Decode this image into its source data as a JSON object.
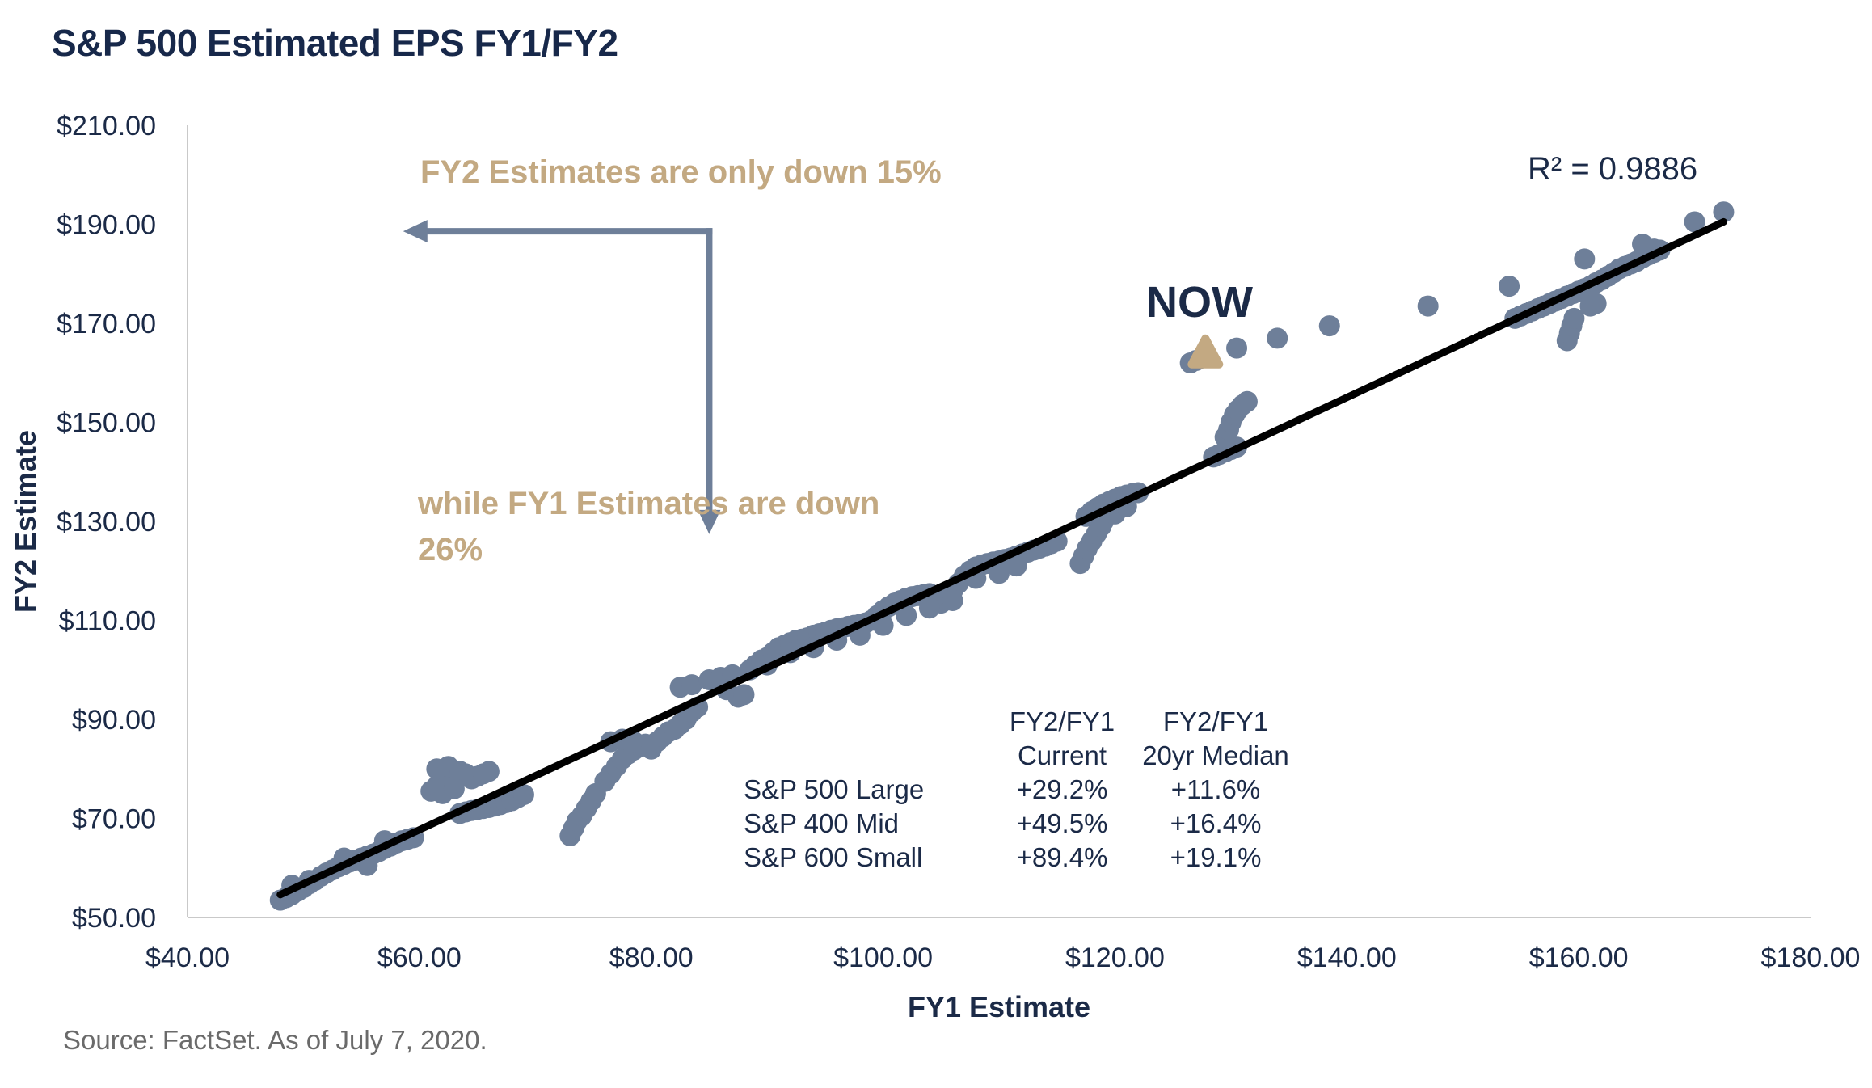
{
  "title": "S&P 500 Estimated EPS FY1/FY2",
  "source": "Source: FactSet. As of July 7, 2020.",
  "chart_data": {
    "type": "scatter",
    "xlabel": "FY1 Estimate",
    "ylabel": "FY2 Estimate",
    "xlim": [
      40,
      180
    ],
    "ylim": [
      50,
      210
    ],
    "x_ticks": [
      "$40.00",
      "$60.00",
      "$80.00",
      "$100.00",
      "$120.00",
      "$140.00",
      "$160.00",
      "$180.00"
    ],
    "y_ticks": [
      "$210.00",
      "$190.00",
      "$170.00",
      "$150.00",
      "$130.00",
      "$110.00",
      "$90.00",
      "$70.00",
      "$50.00"
    ],
    "grid": false,
    "colors": {
      "points": "#6e7f99",
      "trendline": "#000000",
      "now_marker": "#c3a982",
      "arrow": "#6e7f99",
      "annotation": "#c3a982"
    },
    "trendline": {
      "x": [
        48,
        172.5
      ],
      "y": [
        54.6,
        190.5
      ],
      "label": "R² = 0.9886"
    },
    "now": {
      "x": 127.8,
      "y": 164.0,
      "label": "NOW"
    },
    "annotations": {
      "fy2": "FY2 Estimates are only down 15%",
      "fy1_line1": "while FY1 Estimates are down",
      "fy1_line2": "26%"
    },
    "arrow": {
      "start": [
        85,
        188.6
      ],
      "corner": [
        85,
        188.6
      ],
      "end_left": [
        58.6,
        188.6
      ],
      "end_down": [
        85,
        127.4
      ]
    },
    "points": [
      [
        48,
        53.5
      ],
      [
        48.5,
        54
      ],
      [
        49,
        54.6
      ],
      [
        49.5,
        55.3
      ],
      [
        50,
        56
      ],
      [
        50.5,
        56.8
      ],
      [
        51,
        57.5
      ],
      [
        51.5,
        58.3
      ],
      [
        52,
        59
      ],
      [
        52.5,
        59.6
      ],
      [
        53,
        60.2
      ],
      [
        53.5,
        60.7
      ],
      [
        54,
        61.2
      ],
      [
        54.5,
        61.6
      ],
      [
        55,
        62
      ],
      [
        55.5,
        62.4
      ],
      [
        56,
        62.8
      ],
      [
        56.5,
        63.3
      ],
      [
        57,
        63.9
      ],
      [
        57.5,
        64.4
      ],
      [
        58,
        65
      ],
      [
        58.5,
        65.5
      ],
      [
        59,
        65.8
      ],
      [
        59.5,
        66.1
      ],
      [
        49,
        56.5
      ],
      [
        50.5,
        57.5
      ],
      [
        53.5,
        62
      ],
      [
        55.5,
        60.5
      ],
      [
        57,
        65.5
      ],
      [
        61,
        75.5
      ],
      [
        61.5,
        76.5
      ],
      [
        62,
        77.5
      ],
      [
        62.5,
        78.5
      ],
      [
        63,
        79
      ],
      [
        63.5,
        78.5
      ],
      [
        64,
        79
      ],
      [
        64.5,
        78
      ],
      [
        65,
        78.5
      ],
      [
        65.5,
        79
      ],
      [
        66,
        79.5
      ],
      [
        61.5,
        80
      ],
      [
        62.5,
        80.5
      ],
      [
        63.5,
        79.5
      ],
      [
        62,
        75
      ],
      [
        63,
        76
      ],
      [
        63.5,
        71
      ],
      [
        64,
        71.3
      ],
      [
        64.5,
        71.6
      ],
      [
        65,
        71.8
      ],
      [
        65.5,
        72
      ],
      [
        66,
        72.2
      ],
      [
        66.5,
        72.5
      ],
      [
        67,
        72.8
      ],
      [
        67.5,
        73.2
      ],
      [
        68,
        73.6
      ],
      [
        68.5,
        74.2
      ],
      [
        69,
        74.8
      ],
      [
        73,
        66.5
      ],
      [
        73.3,
        68
      ],
      [
        73.6,
        69.5
      ],
      [
        74,
        70.5
      ],
      [
        74.4,
        72
      ],
      [
        74.8,
        73.5
      ],
      [
        75.2,
        75
      ],
      [
        76,
        77.5
      ],
      [
        76.5,
        79
      ],
      [
        77,
        80.5
      ],
      [
        77.5,
        82
      ],
      [
        78,
        83
      ],
      [
        78.5,
        83.8
      ],
      [
        79,
        84.5
      ],
      [
        76.5,
        85.5
      ],
      [
        77.5,
        86
      ],
      [
        78.5,
        85.5
      ],
      [
        79.5,
        85
      ],
      [
        80,
        84
      ],
      [
        80.5,
        85.5
      ],
      [
        81,
        86.5
      ],
      [
        81.5,
        87.5
      ],
      [
        82,
        88
      ],
      [
        82.5,
        89
      ],
      [
        83,
        90
      ],
      [
        83.5,
        91.5
      ],
      [
        84,
        92.5
      ],
      [
        82.5,
        96.5
      ],
      [
        83.5,
        97
      ],
      [
        85,
        98
      ],
      [
        86,
        98.5
      ],
      [
        87,
        99
      ],
      [
        86.5,
        96
      ],
      [
        87.5,
        94.5
      ],
      [
        88,
        95
      ],
      [
        88.5,
        100
      ],
      [
        89,
        101
      ],
      [
        89.5,
        102
      ],
      [
        90,
        102.5
      ],
      [
        90.5,
        103.5
      ],
      [
        91,
        104.5
      ],
      [
        91.5,
        105
      ],
      [
        92,
        105.5
      ],
      [
        92.5,
        106
      ],
      [
        93,
        106.2
      ],
      [
        93.5,
        106.5
      ],
      [
        94,
        107
      ],
      [
        94.5,
        107.3
      ],
      [
        95,
        107.6
      ],
      [
        95.5,
        108
      ],
      [
        96,
        108.3
      ],
      [
        96.5,
        108.5
      ],
      [
        97,
        108.8
      ],
      [
        97.5,
        109
      ],
      [
        98,
        109.2
      ],
      [
        98.5,
        109.5
      ],
      [
        99,
        110
      ],
      [
        99.5,
        111
      ],
      [
        100,
        112
      ],
      [
        100.5,
        112.8
      ],
      [
        101,
        113.5
      ],
      [
        101.5,
        114
      ],
      [
        102,
        114.5
      ],
      [
        102.5,
        114.8
      ],
      [
        103,
        115
      ],
      [
        103.5,
        115.2
      ],
      [
        104,
        115.4
      ],
      [
        104.5,
        114
      ],
      [
        105,
        113.5
      ],
      [
        105.5,
        115
      ],
      [
        106,
        116
      ],
      [
        106.5,
        117.5
      ],
      [
        107,
        119
      ],
      [
        107.5,
        120
      ],
      [
        108,
        120.8
      ],
      [
        108.5,
        121.2
      ],
      [
        109,
        121.5
      ],
      [
        109.5,
        121.8
      ],
      [
        110,
        122
      ],
      [
        110.5,
        122.3
      ],
      [
        111,
        122.6
      ],
      [
        111.5,
        123
      ],
      [
        112,
        123.4
      ],
      [
        112.5,
        123.8
      ],
      [
        113,
        124.2
      ],
      [
        113.5,
        124.6
      ],
      [
        114,
        125
      ],
      [
        114.5,
        125.5
      ],
      [
        115,
        126
      ],
      [
        90,
        101
      ],
      [
        92,
        103.5
      ],
      [
        94,
        104.5
      ],
      [
        96,
        106
      ],
      [
        98,
        107
      ],
      [
        100,
        109
      ],
      [
        102,
        111
      ],
      [
        104,
        112.5
      ],
      [
        106,
        114
      ],
      [
        108,
        118.5
      ],
      [
        110,
        119.5
      ],
      [
        111.5,
        121
      ],
      [
        117,
        121.5
      ],
      [
        117.3,
        123
      ],
      [
        117.6,
        124.5
      ],
      [
        118,
        126
      ],
      [
        118.4,
        127.5
      ],
      [
        118.8,
        129
      ],
      [
        117.5,
        131
      ],
      [
        118,
        132
      ],
      [
        118.5,
        132.8
      ],
      [
        119,
        133.5
      ],
      [
        119.5,
        134
      ],
      [
        120,
        134.5
      ],
      [
        120.5,
        135
      ],
      [
        121,
        135.3
      ],
      [
        121.5,
        135.6
      ],
      [
        122,
        135.8
      ],
      [
        119,
        130
      ],
      [
        120,
        131.5
      ],
      [
        121,
        133
      ],
      [
        128.5,
        143
      ],
      [
        129,
        143.5
      ],
      [
        129.5,
        144
      ],
      [
        130,
        144.5
      ],
      [
        130.5,
        145
      ],
      [
        129.5,
        147
      ],
      [
        129.8,
        148.5
      ],
      [
        130,
        150
      ],
      [
        130.3,
        151.5
      ],
      [
        130.6,
        152.5
      ],
      [
        131,
        153.5
      ],
      [
        131.4,
        154.2
      ],
      [
        126.5,
        162
      ],
      [
        127,
        162.5
      ],
      [
        127.5,
        163
      ],
      [
        130.5,
        165
      ],
      [
        134,
        167
      ],
      [
        138.5,
        169.5
      ],
      [
        147,
        173.5
      ],
      [
        154,
        177.5
      ],
      [
        154.5,
        171
      ],
      [
        155,
        171.5
      ],
      [
        155.5,
        172
      ],
      [
        156,
        172.5
      ],
      [
        156.5,
        173
      ],
      [
        157,
        173.5
      ],
      [
        157.5,
        174
      ],
      [
        158,
        174.5
      ],
      [
        158.5,
        175
      ],
      [
        159,
        175.5
      ],
      [
        159.5,
        176
      ],
      [
        160,
        176.5
      ],
      [
        160.5,
        177
      ],
      [
        161,
        177.5
      ],
      [
        161.5,
        178.2
      ],
      [
        162,
        178.8
      ],
      [
        162.5,
        179.5
      ],
      [
        163,
        180.2
      ],
      [
        163.5,
        181
      ],
      [
        164,
        181.5
      ],
      [
        164.5,
        182
      ],
      [
        165,
        182.5
      ],
      [
        165.5,
        183.2
      ],
      [
        166,
        183.8
      ],
      [
        166.5,
        184.3
      ],
      [
        167,
        184.8
      ],
      [
        159,
        166.5
      ],
      [
        159.2,
        168
      ],
      [
        159.4,
        169.5
      ],
      [
        159.6,
        171
      ],
      [
        161,
        173.5
      ],
      [
        161.5,
        174
      ],
      [
        160.5,
        183
      ],
      [
        165.5,
        186
      ],
      [
        166.5,
        185
      ],
      [
        170,
        190.5
      ],
      [
        172.5,
        192.5
      ]
    ]
  },
  "table": {
    "col1_header": [
      "FY2/FY1",
      "Current"
    ],
    "col2_header": [
      "FY2/FY1",
      "20yr Median"
    ],
    "rows": [
      {
        "label": "S&P 500 Large",
        "current": "+29.2%",
        "median": "+11.6%"
      },
      {
        "label": "S&P 400 Mid",
        "current": "+49.5%",
        "median": "+16.4%"
      },
      {
        "label": "S&P 600 Small",
        "current": "+89.4%",
        "median": "+19.1%"
      }
    ]
  }
}
